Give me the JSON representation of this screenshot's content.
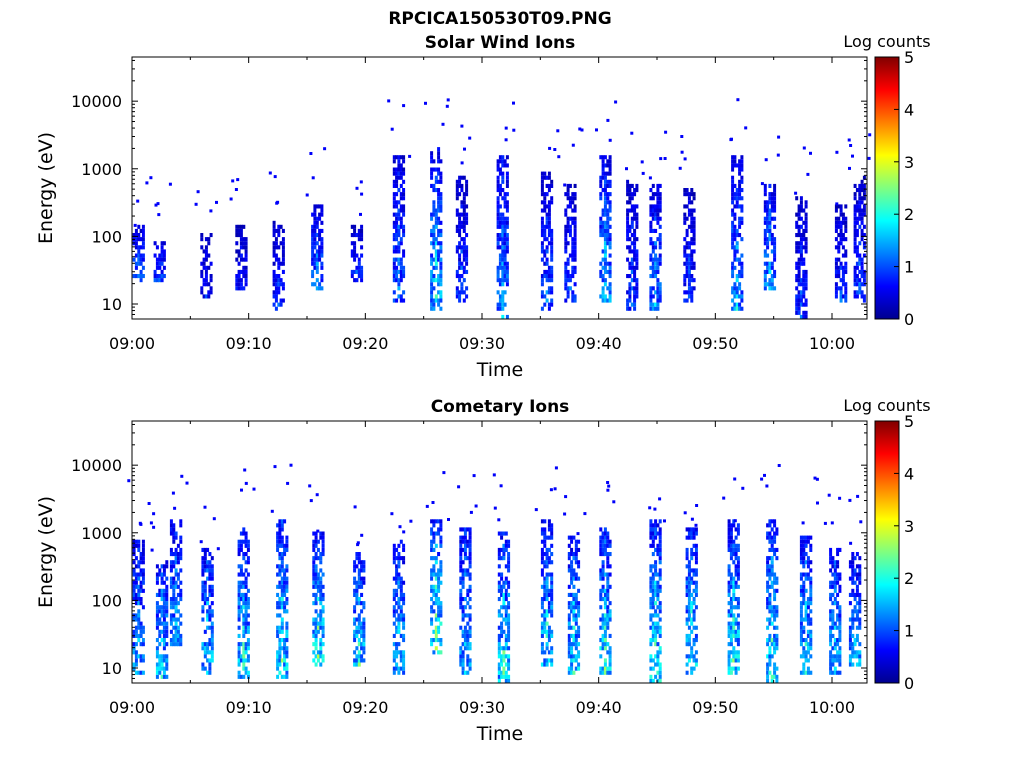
{
  "figure": {
    "title": "RPCICA150530T09.PNG"
  },
  "chart_data": [
    {
      "type": "heatmap",
      "title": "Solar Wind Ions",
      "xlabel": "Time",
      "ylabel": "Energy (eV)",
      "x_ticks": [
        "09:00",
        "09:10",
        "09:20",
        "09:30",
        "09:40",
        "09:50",
        "10:00"
      ],
      "x_range_minutes": [
        0,
        63
      ],
      "y_scale": "log",
      "y_ticks": [
        "10",
        "100",
        "1000",
        "10000"
      ],
      "y_range": [
        6,
        45000
      ],
      "colorbar": {
        "label": "Log counts",
        "ticks": [
          "0",
          "1",
          "2",
          "3",
          "4",
          "5"
        ],
        "range": [
          0,
          5
        ],
        "colormap": "jet"
      },
      "features": [
        {
          "minute": 0.5,
          "e_low": 20,
          "e_high": 150,
          "peak": 1.6
        },
        {
          "minute": 2.3,
          "e_low": 20,
          "e_high": 90,
          "peak": 1.5
        },
        {
          "minute": 6.3,
          "e_low": 12,
          "e_high": 120,
          "peak": 1.0
        },
        {
          "minute": 9.3,
          "e_low": 15,
          "e_high": 150,
          "peak": 1.0
        },
        {
          "minute": 12.5,
          "e_low": 8,
          "e_high": 160,
          "peak": 1.2
        },
        {
          "minute": 15.8,
          "e_low": 15,
          "e_high": 300,
          "peak": 1.7
        },
        {
          "minute": 19.2,
          "e_low": 20,
          "e_high": 150,
          "peak": 1.3
        },
        {
          "minute": 22.8,
          "e_low": 10,
          "e_high": 1500,
          "peak": 1.6
        },
        {
          "minute": 26.0,
          "e_low": 8,
          "e_high": 2000,
          "peak": 2.2
        },
        {
          "minute": 28.2,
          "e_low": 10,
          "e_high": 800,
          "peak": 1.3
        },
        {
          "minute": 31.7,
          "e_low": 6,
          "e_high": 1500,
          "peak": 1.8
        },
        {
          "minute": 35.5,
          "e_low": 8,
          "e_high": 900,
          "peak": 1.4
        },
        {
          "minute": 37.5,
          "e_low": 10,
          "e_high": 600,
          "peak": 1.3
        },
        {
          "minute": 40.5,
          "e_low": 10,
          "e_high": 1500,
          "peak": 2.0
        },
        {
          "minute": 42.8,
          "e_low": 8,
          "e_high": 700,
          "peak": 1.3
        },
        {
          "minute": 44.8,
          "e_low": 8,
          "e_high": 600,
          "peak": 1.7
        },
        {
          "minute": 47.7,
          "e_low": 10,
          "e_high": 500,
          "peak": 1.2
        },
        {
          "minute": 51.8,
          "e_low": 8,
          "e_high": 1500,
          "peak": 1.9
        },
        {
          "minute": 54.6,
          "e_low": 15,
          "e_high": 600,
          "peak": 1.9
        },
        {
          "minute": 57.3,
          "e_low": 6,
          "e_high": 400,
          "peak": 1.2
        },
        {
          "minute": 60.7,
          "e_low": 10,
          "e_high": 300,
          "peak": 1.2
        },
        {
          "minute": 62.3,
          "e_low": 10,
          "e_high": 800,
          "peak": 1.3
        }
      ]
    },
    {
      "type": "heatmap",
      "title": "Cometary Ions",
      "xlabel": "Time",
      "ylabel": "Energy (eV)",
      "x_ticks": [
        "09:00",
        "09:10",
        "09:20",
        "09:30",
        "09:40",
        "09:50",
        "10:00"
      ],
      "x_range_minutes": [
        0,
        63
      ],
      "y_scale": "log",
      "y_ticks": [
        "10",
        "100",
        "1000",
        "10000"
      ],
      "y_range": [
        6,
        45000
      ],
      "colorbar": {
        "label": "Log counts",
        "ticks": [
          "0",
          "1",
          "2",
          "3",
          "4",
          "5"
        ],
        "range": [
          0,
          5
        ],
        "colormap": "jet"
      },
      "features": [
        {
          "minute": 0.5,
          "e_low": 8,
          "e_high": 800,
          "peak": 2.0
        },
        {
          "minute": 2.5,
          "e_low": 7,
          "e_high": 400,
          "peak": 2.3
        },
        {
          "minute": 3.7,
          "e_low": 20,
          "e_high": 1500,
          "peak": 2.0
        },
        {
          "minute": 6.4,
          "e_low": 8,
          "e_high": 600,
          "peak": 2.3
        },
        {
          "minute": 9.5,
          "e_low": 7,
          "e_high": 1200,
          "peak": 2.4
        },
        {
          "minute": 12.8,
          "e_low": 7,
          "e_high": 1500,
          "peak": 2.6
        },
        {
          "minute": 15.9,
          "e_low": 10,
          "e_high": 1000,
          "peak": 2.8
        },
        {
          "minute": 19.4,
          "e_low": 10,
          "e_high": 500,
          "peak": 2.5
        },
        {
          "minute": 22.8,
          "e_low": 8,
          "e_high": 800,
          "peak": 2.2
        },
        {
          "minute": 26.0,
          "e_low": 15,
          "e_high": 1500,
          "peak": 2.9
        },
        {
          "minute": 28.5,
          "e_low": 8,
          "e_high": 1200,
          "peak": 2.2
        },
        {
          "minute": 31.8,
          "e_low": 6,
          "e_high": 1000,
          "peak": 2.6
        },
        {
          "minute": 35.5,
          "e_low": 10,
          "e_high": 1500,
          "peak": 2.4
        },
        {
          "minute": 37.8,
          "e_low": 8,
          "e_high": 900,
          "peak": 2.4
        },
        {
          "minute": 40.5,
          "e_low": 8,
          "e_high": 1200,
          "peak": 2.6
        },
        {
          "minute": 44.8,
          "e_low": 6,
          "e_high": 1500,
          "peak": 2.7
        },
        {
          "minute": 47.9,
          "e_low": 8,
          "e_high": 1200,
          "peak": 2.5
        },
        {
          "minute": 51.5,
          "e_low": 8,
          "e_high": 1500,
          "peak": 2.6
        },
        {
          "minute": 54.8,
          "e_low": 6,
          "e_high": 1500,
          "peak": 2.6
        },
        {
          "minute": 57.7,
          "e_low": 8,
          "e_high": 900,
          "peak": 2.4
        },
        {
          "minute": 60.2,
          "e_low": 8,
          "e_high": 600,
          "peak": 2.2
        },
        {
          "minute": 61.9,
          "e_low": 10,
          "e_high": 500,
          "peak": 2.2
        }
      ]
    }
  ]
}
